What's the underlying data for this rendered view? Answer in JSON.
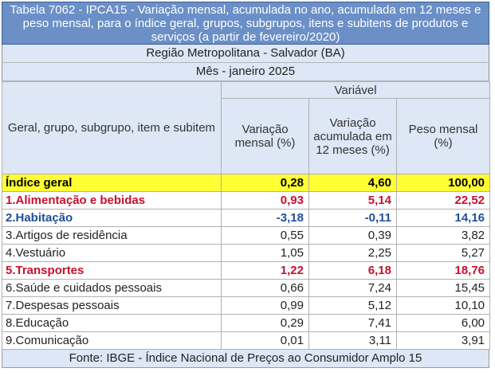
{
  "title": "Tabela 7062 - IPCA15 - Variação mensal, acumulada no ano, acumulada em 12 meses e peso mensal, para o índice geral, grupos, subgrupos, itens e subitens de produtos e serviços (a partir de fevereiro/2020)",
  "region": "Região Metropolitana - Salvador (BA)",
  "month": "Mês - janeiro 2025",
  "header": {
    "variavel": "Variável",
    "label": "Geral, grupo, subgrupo, item e subitem",
    "col1": "Variação mensal (%)",
    "col2": "Variação acumulada em 12 meses (%)",
    "col3": "Peso mensal (%)"
  },
  "rows": [
    {
      "name": "Índice geral",
      "v1": "0,28",
      "v2": "4,60",
      "v3": "100,00"
    },
    {
      "name": "1.Alimentação e bebidas",
      "v1": "0,93",
      "v2": "5,14",
      "v3": "22,52"
    },
    {
      "name": "2.Habitação",
      "v1": "-3,18",
      "v2": "-0,11",
      "v3": "14,16"
    },
    {
      "name": "3.Artigos de residência",
      "v1": "0,55",
      "v2": "0,39",
      "v3": "3,82"
    },
    {
      "name": "4.Vestuário",
      "v1": "1,05",
      "v2": "2,25",
      "v3": "5,27"
    },
    {
      "name": "5.Transportes",
      "v1": "1,22",
      "v2": "6,18",
      "v3": "18,76"
    },
    {
      "name": "6.Saúde e cuidados pessoais",
      "v1": "0,66",
      "v2": "7,24",
      "v3": "15,45"
    },
    {
      "name": "7.Despesas pessoais",
      "v1": "0,99",
      "v2": "5,12",
      "v3": "10,10"
    },
    {
      "name": "8.Educação",
      "v1": "0,29",
      "v2": "7,41",
      "v3": "6,00"
    },
    {
      "name": "9.Comunicação",
      "v1": "0,01",
      "v2": "3,11",
      "v3": "3,91"
    }
  ],
  "footer": "Fonte: IBGE - Índice Nacional de Preços ao Consumidor Amplo 15",
  "colors": {
    "title_bg": "#6b8fc7",
    "header_bg": "#dde7f5",
    "highlight_row": "#ffff33",
    "red_group": "#c8102e",
    "blue_group": "#1f4e9c"
  }
}
